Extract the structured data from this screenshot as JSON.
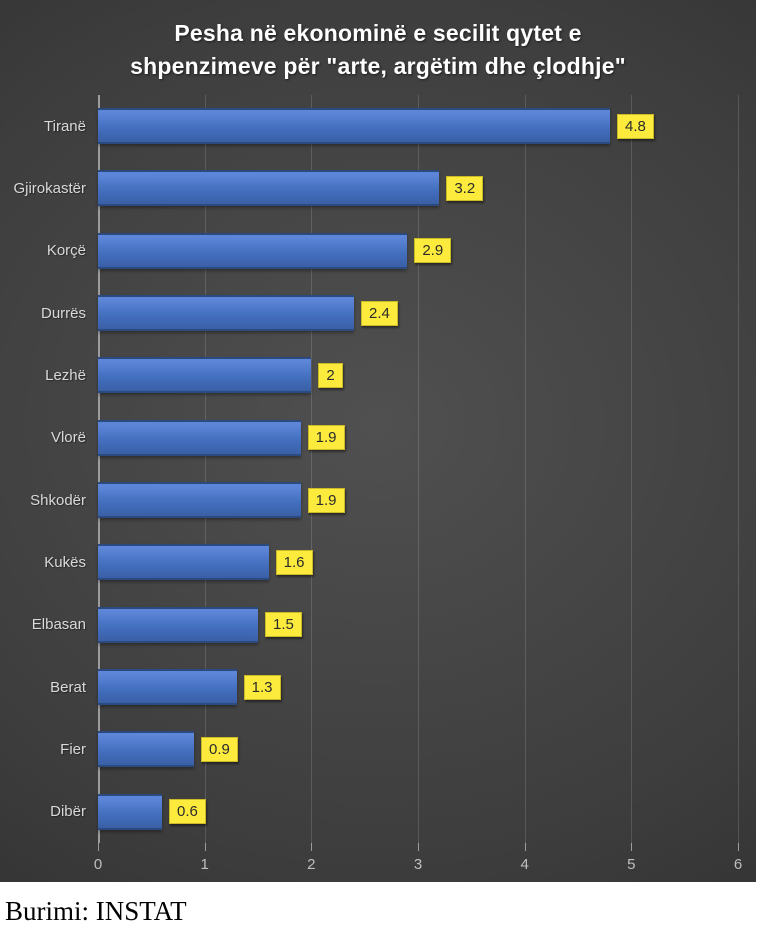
{
  "figure": {
    "source_note": "Burimi: INSTAT"
  },
  "chart_data": {
    "type": "bar",
    "orientation": "horizontal",
    "title": "Pesha në ekonominë e secilit qytet e shpenzimeve për \"arte, argëtim dhe çlodhje\"",
    "title_lines": [
      "Pesha në ekonominë e secilit qytet e",
      "shpenzimeve për \"arte, argëtim dhe çlodhje\""
    ],
    "categories": [
      "Tiranë",
      "Gjirokastër",
      "Korçë",
      "Durrës",
      "Lezhë",
      "Vlorë",
      "Shkodër",
      "Kukës",
      "Elbasan",
      "Berat",
      "Fier",
      "Dibër"
    ],
    "values": [
      4.8,
      3.2,
      2.9,
      2.4,
      2,
      1.9,
      1.9,
      1.6,
      1.5,
      1.3,
      0.9,
      0.6
    ],
    "value_labels": [
      "4.8",
      "3.2",
      "2.9",
      "2.4",
      "2",
      "1.9",
      "1.9",
      "1.6",
      "1.5",
      "1.3",
      "0.9",
      "0.6"
    ],
    "xlabel": "",
    "ylabel": "",
    "xlim": [
      0,
      6
    ],
    "x_ticks": [
      0,
      1,
      2,
      3,
      4,
      5,
      6
    ],
    "grid": true,
    "legend_position": "none",
    "colors": {
      "bar_fill_light": "#5E86D8",
      "bar_fill_mid": "#4470C0",
      "bar_fill_dark": "#3A5FA6",
      "bar_border": "#2B4A80",
      "data_label_bg": "#FCEB3C",
      "data_label_text": "#2B2B2B",
      "background_center": "#505050",
      "background_edge": "#282828",
      "gridline": "rgba(255,255,255,0.14)",
      "axis_line": "#9C9C9C",
      "category_label": "#D9D9D9",
      "tick_label": "#BFBFBF",
      "title": "#FFFFFF"
    }
  }
}
